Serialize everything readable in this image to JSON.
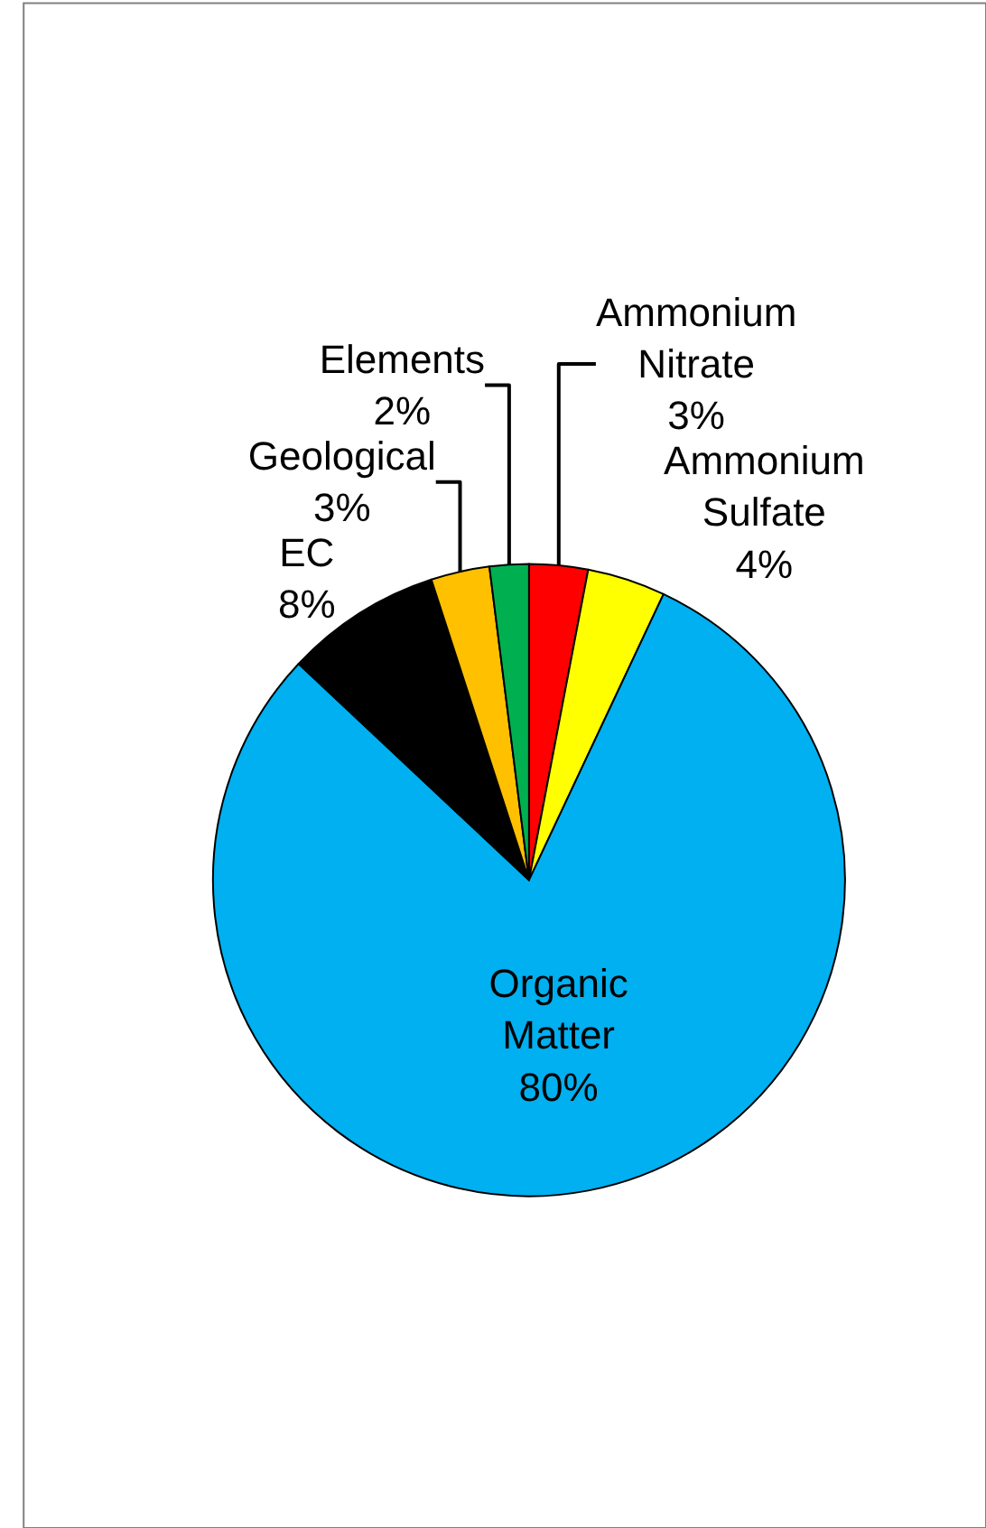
{
  "chart_data": {
    "type": "pie",
    "categories": [
      "Ammonium Nitrate",
      "Ammonium Sulfate",
      "Organic Matter",
      "EC",
      "Geological",
      "Elements"
    ],
    "values": [
      3,
      4,
      80,
      8,
      3,
      2
    ],
    "value_labels": [
      "3%",
      "4%",
      "80%",
      "8%",
      "3%",
      "2%"
    ],
    "colors": [
      "#ff0000",
      "#ffff00",
      "#00b0f0",
      "#000000",
      "#ffc000",
      "#00b050"
    ],
    "legend": false
  }
}
